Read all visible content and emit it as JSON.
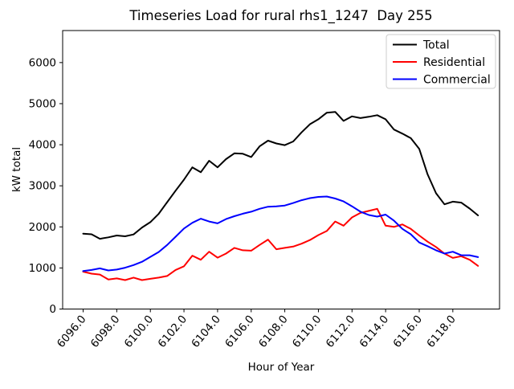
{
  "window": {
    "background": "#ffffff"
  },
  "chart_data": {
    "type": "line",
    "title": "Timeseries Load for rural rhs1_1247  Day 255",
    "xlabel": "Hour of Year",
    "ylabel": "kW total",
    "grid": false,
    "legend_position": "upper right",
    "xlim": [
      6094.78,
      6120.78
    ],
    "ylim": [
      0,
      6780
    ],
    "xticks": [
      6096,
      6098,
      6100,
      6102,
      6104,
      6106,
      6108,
      6110,
      6112,
      6114,
      6116,
      6118
    ],
    "xtick_labels": [
      "6096.0",
      "6098.0",
      "6100.0",
      "6102.0",
      "6104.0",
      "6106.0",
      "6108.0",
      "6110.0",
      "6112.0",
      "6114.0",
      "6116.0",
      "6118.0"
    ],
    "yticks": [
      0,
      1000,
      2000,
      3000,
      4000,
      5000,
      6000
    ],
    "ytick_labels": [
      "0",
      "1000",
      "2000",
      "3000",
      "4000",
      "5000",
      "6000"
    ],
    "x": [
      6096.0,
      6096.5,
      6097.0,
      6097.5,
      6098.0,
      6098.5,
      6099.0,
      6099.5,
      6100.0,
      6100.5,
      6101.0,
      6101.5,
      6102.0,
      6102.5,
      6103.0,
      6103.5,
      6104.0,
      6104.5,
      6105.0,
      6105.5,
      6106.0,
      6106.5,
      6107.0,
      6107.5,
      6108.0,
      6108.5,
      6109.0,
      6109.5,
      6110.0,
      6110.5,
      6111.0,
      6111.5,
      6112.0,
      6112.5,
      6113.0,
      6113.5,
      6114.0,
      6114.5,
      6115.0,
      6115.5,
      6116.0,
      6116.5,
      6117.0,
      6117.5,
      6118.0,
      6118.5,
      6119.0,
      6119.5
    ],
    "series": [
      {
        "name": "Total",
        "color": "#000000",
        "values": [
          1835,
          1820,
          1710,
          1745,
          1790,
          1770,
          1815,
          1985,
          2115,
          2320,
          2600,
          2880,
          3150,
          3450,
          3330,
          3610,
          3450,
          3650,
          3790,
          3780,
          3700,
          3960,
          4100,
          4030,
          3990,
          4080,
          4300,
          4500,
          4620,
          4780,
          4800,
          4580,
          4690,
          4650,
          4680,
          4720,
          4620,
          4370,
          4270,
          4160,
          3900,
          3280,
          2820,
          2550,
          2615,
          2590,
          2445,
          2280
        ]
      },
      {
        "name": "Residential",
        "color": "#ff0000",
        "values": [
          910,
          860,
          840,
          720,
          745,
          705,
          765,
          705,
          735,
          765,
          805,
          950,
          1040,
          1300,
          1200,
          1395,
          1250,
          1350,
          1490,
          1430,
          1420,
          1560,
          1690,
          1455,
          1490,
          1520,
          1590,
          1680,
          1800,
          1900,
          2130,
          2030,
          2230,
          2340,
          2390,
          2440,
          2030,
          2000,
          2060,
          1950,
          1790,
          1640,
          1510,
          1350,
          1245,
          1285,
          1200,
          1050
        ]
      },
      {
        "name": "Commercial",
        "color": "#0000ff",
        "values": [
          925,
          950,
          990,
          940,
          960,
          1005,
          1070,
          1150,
          1270,
          1390,
          1560,
          1760,
          1960,
          2100,
          2200,
          2130,
          2085,
          2190,
          2260,
          2320,
          2370,
          2440,
          2490,
          2500,
          2520,
          2580,
          2650,
          2700,
          2730,
          2740,
          2690,
          2620,
          2500,
          2370,
          2290,
          2250,
          2300,
          2150,
          1950,
          1820,
          1620,
          1530,
          1430,
          1350,
          1395,
          1310,
          1310,
          1265
        ]
      }
    ]
  }
}
